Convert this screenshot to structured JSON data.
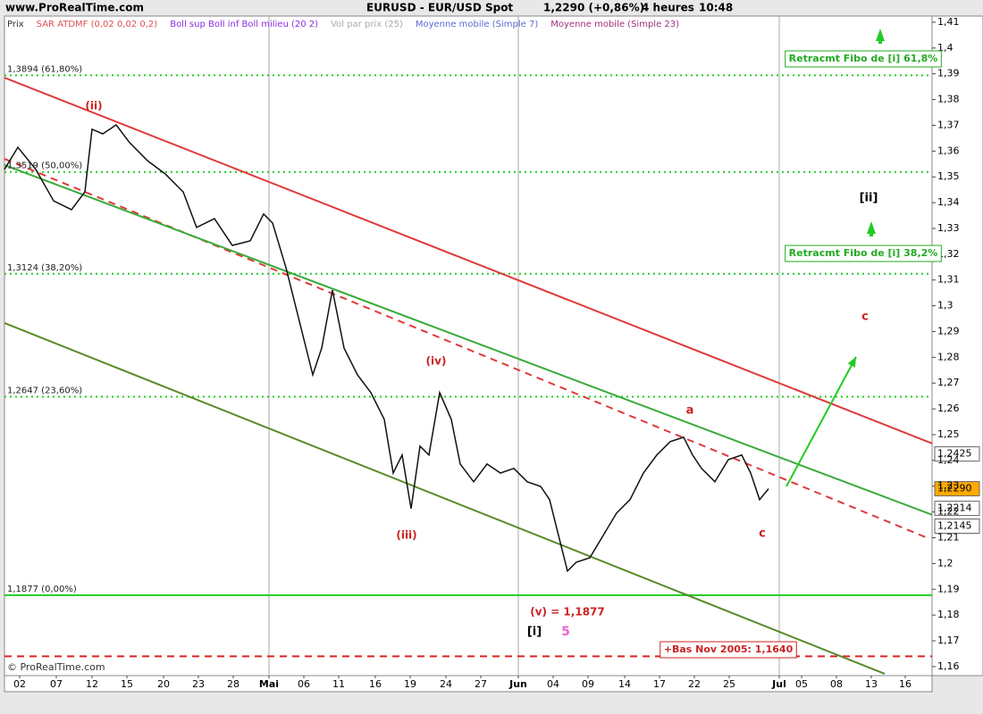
{
  "chart_data": {
    "type": "line",
    "site": "www.ProRealTime.com",
    "title": "EURUSD - EUR/USD Spot",
    "last": "1,2290 (+0,86%)",
    "timeframe": "4 heures",
    "time": "10:48",
    "copyright": "© ProRealTime.com",
    "indicators": [
      {
        "name": "Prix",
        "color": "#333333"
      },
      {
        "name": "SAR ATDMF (0,02 0,02 0,2)",
        "color": "#e05050"
      },
      {
        "name": "Boll sup Boll inf Boll milieu (20 2)",
        "color": "#8a2be2"
      },
      {
        "name": "Vol par prix (25)",
        "color": "#aaaaaa"
      },
      {
        "name": "Moyenne mobile (Simple 7)",
        "color": "#5a6ad0"
      },
      {
        "name": "Moyenne mobile (Simple 23)",
        "color": "#a0307a"
      }
    ],
    "xlim": [
      0,
      259.5
    ],
    "ylim": [
      1.1565,
      1.4124
    ],
    "xticks": [
      {
        "value": 4.25,
        "label": "02"
      },
      {
        "value": 14.5,
        "label": "07"
      },
      {
        "value": 24.5,
        "label": "12"
      },
      {
        "value": 34.25,
        "label": "15"
      },
      {
        "value": 44.5,
        "label": "20"
      },
      {
        "value": 54.25,
        "label": "23"
      },
      {
        "value": 64,
        "label": "28"
      },
      {
        "value": 74,
        "label": "Mai"
      },
      {
        "value": 83.75,
        "label": "06"
      },
      {
        "value": 93.5,
        "label": "11"
      },
      {
        "value": 103.75,
        "label": "16"
      },
      {
        "value": 113.5,
        "label": "19"
      },
      {
        "value": 123.5,
        "label": "24"
      },
      {
        "value": 133.25,
        "label": "27"
      },
      {
        "value": 143.75,
        "label": "Jun"
      },
      {
        "value": 153.5,
        "label": "04"
      },
      {
        "value": 163.25,
        "label": "09"
      },
      {
        "value": 173.5,
        "label": "14"
      },
      {
        "value": 183.25,
        "label": "17"
      },
      {
        "value": 193,
        "label": "22"
      },
      {
        "value": 202.75,
        "label": "25"
      },
      {
        "value": 216.75,
        "label": "Jul"
      },
      {
        "value": 223,
        "label": "05"
      },
      {
        "value": 232.75,
        "label": "08"
      },
      {
        "value": 242.5,
        "label": "13"
      },
      {
        "value": 252,
        "label": "16"
      }
    ],
    "yticks": [
      {
        "value": 1.41,
        "label": "1,41"
      },
      {
        "value": 1.4,
        "label": "1,4"
      },
      {
        "value": 1.39,
        "label": "1,39"
      },
      {
        "value": 1.38,
        "label": "1,38"
      },
      {
        "value": 1.37,
        "label": "1,37"
      },
      {
        "value": 1.36,
        "label": "1,36"
      },
      {
        "value": 1.35,
        "label": "1,35"
      },
      {
        "value": 1.34,
        "label": "1,34"
      },
      {
        "value": 1.33,
        "label": "1,33"
      },
      {
        "value": 1.32,
        "label": "1,32"
      },
      {
        "value": 1.31,
        "label": "1,31"
      },
      {
        "value": 1.3,
        "label": "1,3"
      },
      {
        "value": 1.29,
        "label": "1,29"
      },
      {
        "value": 1.28,
        "label": "1,28"
      },
      {
        "value": 1.27,
        "label": "1,27"
      },
      {
        "value": 1.26,
        "label": "1,26"
      },
      {
        "value": 1.25,
        "label": "1,25"
      },
      {
        "value": 1.24,
        "label": "1,24"
      },
      {
        "value": 1.23,
        "label": "1,23"
      },
      {
        "value": 1.22,
        "label": "1,22"
      },
      {
        "value": 1.21,
        "label": "1,21"
      },
      {
        "value": 1.2,
        "label": "1,2"
      },
      {
        "value": 1.19,
        "label": "1,19"
      },
      {
        "value": 1.18,
        "label": "1,18"
      },
      {
        "value": 1.17,
        "label": "1,17"
      },
      {
        "value": 1.16,
        "label": "1,16"
      }
    ],
    "series": [
      {
        "name": "Prix",
        "color": "#111111",
        "x": [
          0,
          3.75,
          8.75,
          13.75,
          18.75,
          22.5,
          24.5,
          27.5,
          31.25,
          35,
          40,
          45,
          50,
          53.75,
          58.75,
          63.75,
          68.75,
          72.5,
          75,
          78.75,
          82.5,
          86.25,
          88.75,
          91.75,
          95,
          98.75,
          102.5,
          106.25,
          108.75,
          111.25,
          113.75,
          116.25,
          118.75,
          121.75,
          125,
          127.5,
          131.25,
          135,
          138.75,
          142.5,
          146.25,
          150,
          152.5,
          155,
          157.5,
          160,
          163.75,
          167.5,
          171.25,
          175,
          178.75,
          182.5,
          186.25,
          190,
          192.5,
          195,
          198.75,
          202.5,
          206.25,
          208.75,
          211.25,
          213.75
        ],
        "values": [
          1.3529,
          1.3615,
          1.3529,
          1.3407,
          1.3373,
          1.3442,
          1.3685,
          1.3667,
          1.3702,
          1.3633,
          1.3563,
          1.3511,
          1.3442,
          1.3304,
          1.3338,
          1.3234,
          1.3252,
          1.3356,
          1.3321,
          1.3148,
          1.294,
          1.2732,
          1.2836,
          1.3061,
          1.2836,
          1.2732,
          1.2663,
          1.2559,
          1.2351,
          1.2421,
          1.2213,
          1.2455,
          1.2421,
          1.2663,
          1.2559,
          1.2386,
          1.2317,
          1.2386,
          1.2351,
          1.2369,
          1.2317,
          1.2299,
          1.2248,
          1.2109,
          1.1971,
          1.2005,
          1.2022,
          1.2109,
          1.2196,
          1.2248,
          1.2351,
          1.2421,
          1.2473,
          1.249,
          1.2421,
          1.2369,
          1.2317,
          1.2403,
          1.2421,
          1.2351,
          1.2248,
          1.229
        ]
      }
    ],
    "levels": [
      {
        "value": 1.3894,
        "label": "1,3894 (61,80%)",
        "color": "#22cc22",
        "style": "dotted"
      },
      {
        "value": 1.3519,
        "label": "1,3519 (50,00%)",
        "color": "#22cc22",
        "style": "dotted"
      },
      {
        "value": 1.3124,
        "label": "1,3124 (38,20%)",
        "color": "#22cc22",
        "style": "dotted"
      },
      {
        "value": 1.2647,
        "label": "1,2647 (23,60%)",
        "color": "#22cc22",
        "style": "dotted"
      },
      {
        "value": 1.1877,
        "label": "1,1877 (0,00%)",
        "color": "#22cc22",
        "style": "solid"
      },
      {
        "value": 1.164,
        "color": "#dd2222",
        "style": "dashed"
      }
    ],
    "trendlines": [
      {
        "color": "#e03a3a",
        "style": "solid",
        "x": [
          0,
          259.5
        ],
        "y": [
          1.3885,
          1.2466
        ]
      },
      {
        "color": "#e03a3a",
        "style": "dashed",
        "x": [
          0,
          258.25
        ],
        "y": [
          1.357,
          1.2099
        ]
      },
      {
        "color": "#3aaa3a",
        "style": "solid",
        "x": [
          0,
          259.5
        ],
        "y": [
          1.3546,
          1.2189
        ]
      },
      {
        "color": "#5a8a2a",
        "style": "solid",
        "x": [
          0,
          246.25
        ],
        "y": [
          1.2933,
          1.1572
        ]
      },
      {
        "color": "#22cc22",
        "style": "arrow",
        "x": [
          218.75,
          238.25
        ],
        "y": [
          1.2299,
          1.2802
        ]
      }
    ],
    "price_tags": [
      {
        "value": 1.2425,
        "label": "1,2425",
        "color": "#ffffff"
      },
      {
        "value": 1.229,
        "label": "1,2290",
        "color": "#ffaa00"
      },
      {
        "value": 1.2214,
        "label": "1,2214",
        "color": "#ffffff"
      },
      {
        "value": 1.2145,
        "label": "1,2145",
        "color": "#ffffff"
      }
    ],
    "annotations": [
      {
        "text": "(ii)",
        "color": "#cc2222"
      },
      {
        "text": "(iii)",
        "color": "#cc2222"
      },
      {
        "text": "(iv)",
        "color": "#cc2222"
      },
      {
        "text": "(v) = 1,1877",
        "color": "#cc2222"
      },
      {
        "text": "[i]",
        "color": "#000000"
      },
      {
        "text": "5",
        "color": "#ee66cc"
      },
      {
        "text": "a",
        "color": "#cc2222"
      },
      {
        "text": "c",
        "color": "#cc2222"
      },
      {
        "text": "c",
        "color": "#cc2222"
      },
      {
        "text": "[ii]",
        "color": "#000000"
      },
      {
        "text": "Retracmt Fibo de [i] 61,8%",
        "color": "#22aa22",
        "boxed": true
      },
      {
        "text": "Retracmt Fibo de [i] 38,2%",
        "color": "#22aa22",
        "boxed": true
      },
      {
        "text": "+Bas Nov 2005: 1,1640",
        "color": "#cc2222",
        "boxed": true
      }
    ]
  }
}
